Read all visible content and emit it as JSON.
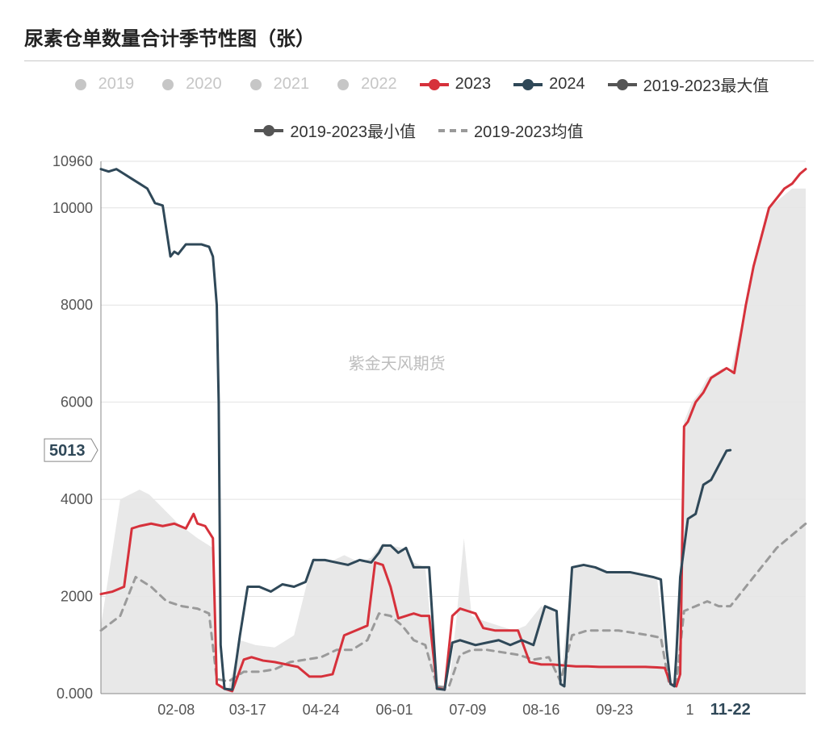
{
  "title": "尿素仓单数量合计季节性图（张）",
  "watermark": "紫金天风期货",
  "chart": {
    "type": "line",
    "background_color": "#ffffff",
    "grid_color": "#e2e2e2",
    "axis_color": "#888888",
    "axis_label_color": "#555555",
    "axis_fontsize": 18,
    "title_fontsize": 24,
    "ylim": [
      0,
      10960
    ],
    "yticks": [
      0,
      2000,
      4000,
      6000,
      8000,
      10000,
      10960
    ],
    "ytick_labels": [
      "0.000",
      "2000",
      "4000",
      "6000",
      "8000",
      "10000",
      "10960"
    ],
    "y_highlight": {
      "value": 5013,
      "label": "5013"
    },
    "xlim": [
      0,
      365
    ],
    "xticks": [
      39,
      76,
      114,
      152,
      190,
      228,
      266,
      305,
      326
    ],
    "xtick_labels": [
      "02-08",
      "03-17",
      "04-24",
      "06-01",
      "07-09",
      "08-16",
      "09-23",
      "1",
      "11-22"
    ],
    "x_highlight_index": 8,
    "legend": [
      {
        "label": "2019",
        "type": "dot",
        "color": "#c6c6c6",
        "inactive": true
      },
      {
        "label": "2020",
        "type": "dot",
        "color": "#c6c6c6",
        "inactive": true
      },
      {
        "label": "2021",
        "type": "dot",
        "color": "#c6c6c6",
        "inactive": true
      },
      {
        "label": "2022",
        "type": "dot",
        "color": "#c6c6c6",
        "inactive": true
      },
      {
        "label": "2023",
        "type": "line",
        "color": "#d6313b",
        "inactive": false
      },
      {
        "label": "2024",
        "type": "line",
        "color": "#2f4858",
        "inactive": false
      },
      {
        "label": "2019-2023最大值",
        "type": "line",
        "color": "#555555",
        "inactive": false
      },
      {
        "label": "2019-2023最小值",
        "type": "line",
        "color": "#555555",
        "inactive": false
      },
      {
        "label": "2019-2023均值",
        "type": "dash",
        "color": "#9a9a9a",
        "inactive": false
      }
    ],
    "band": {
      "fill": "#e6e6e6",
      "opacity": 0.9,
      "upper": [
        [
          0,
          1400
        ],
        [
          10,
          4000
        ],
        [
          20,
          4200
        ],
        [
          25,
          4100
        ],
        [
          30,
          3900
        ],
        [
          40,
          3500
        ],
        [
          50,
          3200
        ],
        [
          58,
          3000
        ],
        [
          60,
          200
        ],
        [
          66,
          100
        ],
        [
          72,
          1100
        ],
        [
          80,
          1000
        ],
        [
          90,
          950
        ],
        [
          100,
          1200
        ],
        [
          110,
          2800
        ],
        [
          118,
          2700
        ],
        [
          126,
          2850
        ],
        [
          134,
          2700
        ],
        [
          140,
          2800
        ],
        [
          146,
          3100
        ],
        [
          150,
          3050
        ],
        [
          156,
          3000
        ],
        [
          162,
          2700
        ],
        [
          168,
          2600
        ],
        [
          174,
          150
        ],
        [
          180,
          100
        ],
        [
          184,
          1500
        ],
        [
          188,
          3200
        ],
        [
          192,
          1600
        ],
        [
          198,
          1500
        ],
        [
          206,
          1400
        ],
        [
          214,
          1300
        ],
        [
          220,
          1400
        ],
        [
          228,
          1800
        ],
        [
          236,
          1700
        ],
        [
          238,
          200
        ],
        [
          244,
          2600
        ],
        [
          252,
          2650
        ],
        [
          258,
          2550
        ],
        [
          266,
          2500
        ],
        [
          272,
          2500
        ],
        [
          280,
          2450
        ],
        [
          288,
          2400
        ],
        [
          294,
          200
        ],
        [
          298,
          150
        ],
        [
          302,
          5600
        ],
        [
          306,
          6000
        ],
        [
          310,
          6200
        ],
        [
          314,
          6500
        ],
        [
          318,
          6600
        ],
        [
          322,
          6700
        ],
        [
          326,
          6600
        ],
        [
          334,
          8000
        ],
        [
          340,
          9200
        ],
        [
          346,
          10000
        ],
        [
          352,
          10200
        ],
        [
          358,
          10400
        ],
        [
          365,
          10400
        ]
      ],
      "lower": [
        [
          0,
          0
        ],
        [
          60,
          0
        ],
        [
          66,
          0
        ],
        [
          174,
          0
        ],
        [
          180,
          0
        ],
        [
          238,
          0
        ],
        [
          294,
          0
        ],
        [
          298,
          0
        ],
        [
          365,
          0
        ]
      ]
    },
    "series": {
      "y2023": {
        "color": "#d6313b",
        "width": 3,
        "data": [
          [
            0,
            2050
          ],
          [
            6,
            2100
          ],
          [
            12,
            2200
          ],
          [
            16,
            3400
          ],
          [
            20,
            3450
          ],
          [
            26,
            3500
          ],
          [
            32,
            3450
          ],
          [
            38,
            3500
          ],
          [
            44,
            3400
          ],
          [
            48,
            3700
          ],
          [
            50,
            3500
          ],
          [
            54,
            3450
          ],
          [
            58,
            3200
          ],
          [
            60,
            200
          ],
          [
            64,
            100
          ],
          [
            68,
            50
          ],
          [
            74,
            700
          ],
          [
            78,
            750
          ],
          [
            84,
            680
          ],
          [
            90,
            650
          ],
          [
            96,
            600
          ],
          [
            102,
            550
          ],
          [
            108,
            350
          ],
          [
            114,
            350
          ],
          [
            120,
            400
          ],
          [
            126,
            1200
          ],
          [
            132,
            1300
          ],
          [
            138,
            1400
          ],
          [
            142,
            2700
          ],
          [
            146,
            2650
          ],
          [
            150,
            2200
          ],
          [
            154,
            1550
          ],
          [
            158,
            1600
          ],
          [
            162,
            1650
          ],
          [
            166,
            1600
          ],
          [
            170,
            1600
          ],
          [
            174,
            120
          ],
          [
            178,
            80
          ],
          [
            182,
            1600
          ],
          [
            186,
            1750
          ],
          [
            190,
            1700
          ],
          [
            194,
            1650
          ],
          [
            198,
            1350
          ],
          [
            204,
            1300
          ],
          [
            210,
            1300
          ],
          [
            216,
            1300
          ],
          [
            222,
            650
          ],
          [
            228,
            600
          ],
          [
            234,
            600
          ],
          [
            240,
            580
          ],
          [
            246,
            560
          ],
          [
            252,
            560
          ],
          [
            258,
            550
          ],
          [
            264,
            550
          ],
          [
            270,
            550
          ],
          [
            276,
            550
          ],
          [
            282,
            550
          ],
          [
            288,
            540
          ],
          [
            292,
            530
          ],
          [
            295,
            200
          ],
          [
            298,
            150
          ],
          [
            300,
            400
          ],
          [
            302,
            5500
          ],
          [
            304,
            5600
          ],
          [
            308,
            6000
          ],
          [
            312,
            6200
          ],
          [
            316,
            6500
          ],
          [
            320,
            6600
          ],
          [
            324,
            6700
          ],
          [
            328,
            6600
          ],
          [
            334,
            8000
          ],
          [
            338,
            8800
          ],
          [
            342,
            9400
          ],
          [
            346,
            10000
          ],
          [
            350,
            10200
          ],
          [
            354,
            10400
          ],
          [
            358,
            10500
          ],
          [
            362,
            10700
          ],
          [
            365,
            10800
          ]
        ]
      },
      "y2024": {
        "color": "#2f4858",
        "width": 3,
        "data": [
          [
            0,
            10800
          ],
          [
            4,
            10750
          ],
          [
            8,
            10800
          ],
          [
            12,
            10700
          ],
          [
            16,
            10600
          ],
          [
            20,
            10500
          ],
          [
            24,
            10400
          ],
          [
            28,
            10100
          ],
          [
            32,
            10050
          ],
          [
            36,
            9000
          ],
          [
            38,
            9100
          ],
          [
            40,
            9050
          ],
          [
            44,
            9250
          ],
          [
            48,
            9250
          ],
          [
            52,
            9250
          ],
          [
            56,
            9200
          ],
          [
            58,
            9000
          ],
          [
            60,
            8000
          ],
          [
            61,
            6000
          ],
          [
            62,
            1000
          ],
          [
            64,
            100
          ],
          [
            68,
            80
          ],
          [
            72,
            1200
          ],
          [
            76,
            2200
          ],
          [
            82,
            2200
          ],
          [
            88,
            2100
          ],
          [
            94,
            2250
          ],
          [
            100,
            2200
          ],
          [
            106,
            2300
          ],
          [
            110,
            2750
          ],
          [
            116,
            2750
          ],
          [
            122,
            2700
          ],
          [
            128,
            2650
          ],
          [
            134,
            2750
          ],
          [
            140,
            2700
          ],
          [
            144,
            2900
          ],
          [
            146,
            3050
          ],
          [
            150,
            3050
          ],
          [
            154,
            2900
          ],
          [
            158,
            3000
          ],
          [
            162,
            2600
          ],
          [
            166,
            2600
          ],
          [
            170,
            2600
          ],
          [
            174,
            100
          ],
          [
            178,
            80
          ],
          [
            182,
            1050
          ],
          [
            186,
            1100
          ],
          [
            190,
            1050
          ],
          [
            194,
            1000
          ],
          [
            200,
            1050
          ],
          [
            206,
            1100
          ],
          [
            212,
            1000
          ],
          [
            218,
            1100
          ],
          [
            224,
            1000
          ],
          [
            230,
            1800
          ],
          [
            236,
            1700
          ],
          [
            238,
            200
          ],
          [
            240,
            150
          ],
          [
            244,
            2600
          ],
          [
            250,
            2650
          ],
          [
            256,
            2600
          ],
          [
            262,
            2500
          ],
          [
            268,
            2500
          ],
          [
            274,
            2500
          ],
          [
            280,
            2450
          ],
          [
            286,
            2400
          ],
          [
            290,
            2350
          ],
          [
            293,
            900
          ],
          [
            295,
            200
          ],
          [
            297,
            150
          ],
          [
            298,
            800
          ],
          [
            300,
            2400
          ],
          [
            304,
            3600
          ],
          [
            308,
            3700
          ],
          [
            312,
            4300
          ],
          [
            316,
            4400
          ],
          [
            320,
            4700
          ],
          [
            324,
            5000
          ],
          [
            326,
            5013
          ]
        ]
      },
      "mean": {
        "color": "#9a9a9a",
        "width": 3,
        "dash": "8 7",
        "data": [
          [
            0,
            1300
          ],
          [
            10,
            1600
          ],
          [
            18,
            2400
          ],
          [
            26,
            2200
          ],
          [
            34,
            1900
          ],
          [
            42,
            1800
          ],
          [
            50,
            1750
          ],
          [
            56,
            1650
          ],
          [
            60,
            300
          ],
          [
            66,
            250
          ],
          [
            74,
            450
          ],
          [
            82,
            450
          ],
          [
            90,
            500
          ],
          [
            98,
            650
          ],
          [
            106,
            700
          ],
          [
            114,
            750
          ],
          [
            122,
            900
          ],
          [
            130,
            900
          ],
          [
            138,
            1100
          ],
          [
            144,
            1650
          ],
          [
            150,
            1600
          ],
          [
            156,
            1400
          ],
          [
            162,
            1100
          ],
          [
            168,
            1000
          ],
          [
            174,
            150
          ],
          [
            180,
            120
          ],
          [
            186,
            800
          ],
          [
            192,
            900
          ],
          [
            200,
            900
          ],
          [
            208,
            850
          ],
          [
            216,
            800
          ],
          [
            224,
            700
          ],
          [
            232,
            750
          ],
          [
            238,
            250
          ],
          [
            244,
            1200
          ],
          [
            252,
            1300
          ],
          [
            260,
            1300
          ],
          [
            268,
            1300
          ],
          [
            276,
            1250
          ],
          [
            284,
            1200
          ],
          [
            290,
            1150
          ],
          [
            294,
            250
          ],
          [
            298,
            200
          ],
          [
            302,
            1700
          ],
          [
            308,
            1800
          ],
          [
            314,
            1900
          ],
          [
            320,
            1800
          ],
          [
            326,
            1800
          ],
          [
            332,
            2100
          ],
          [
            338,
            2400
          ],
          [
            344,
            2700
          ],
          [
            350,
            3000
          ],
          [
            356,
            3200
          ],
          [
            362,
            3400
          ],
          [
            365,
            3500
          ]
        ]
      }
    }
  }
}
